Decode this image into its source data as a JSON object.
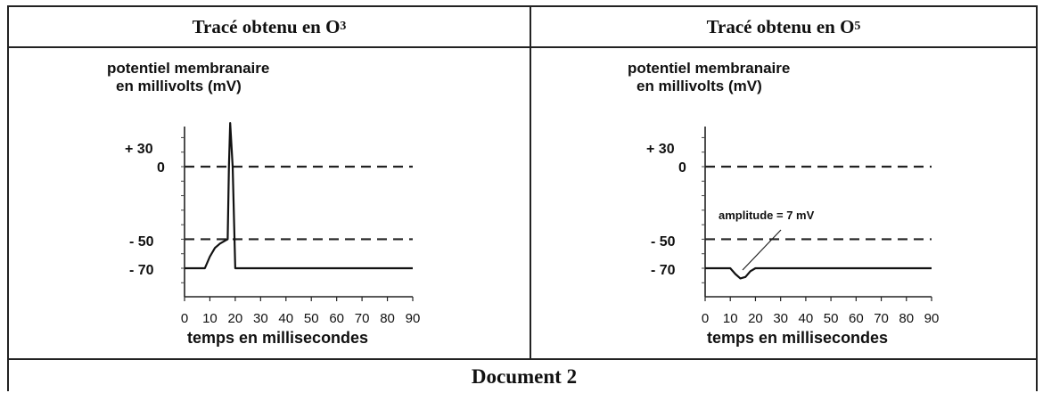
{
  "panels": [
    {
      "header_prefix": "Tracé obtenu en O",
      "header_sub": "3",
      "ylabel_line1": "potentiel membranaire",
      "ylabel_line2": "en millivolts (mV)",
      "xlabel": "temps en millisecondes",
      "y_ticks": [
        "+ 30",
        "0",
        "- 50",
        "- 70"
      ],
      "x_ticks": [
        "0",
        "10",
        "20",
        "30",
        "40",
        "50",
        "60",
        "70",
        "80",
        "90"
      ]
    },
    {
      "header_prefix": "Tracé obtenu en O",
      "header_sub": "5",
      "ylabel_line1": "potentiel membranaire",
      "ylabel_line2": "en millivolts (mV)",
      "xlabel": "temps en millisecondes",
      "y_ticks": [
        "+ 30",
        "0",
        "- 50",
        "- 70"
      ],
      "x_ticks": [
        "0",
        "10",
        "20",
        "30",
        "40",
        "50",
        "60",
        "70",
        "80",
        "90"
      ],
      "annotation": "amplitude = 7 mV"
    }
  ],
  "footer": {
    "title": "Document 2"
  },
  "chart_data": [
    {
      "type": "line",
      "xlabel": "temps en millisecondes",
      "ylabel": "potentiel membranaire en millivolts (mV)",
      "xlim": [
        0,
        90
      ],
      "ylim": [
        -80,
        40
      ],
      "reference_lines": [
        0,
        -50
      ],
      "series": [
        {
          "x": [
            0,
            8,
            10,
            12,
            14,
            16,
            17,
            17.5,
            18,
            19,
            20,
            90
          ],
          "y": [
            -70,
            -70,
            -62,
            -56,
            -53,
            -51,
            -50,
            0,
            30,
            0,
            -70,
            -70
          ]
        }
      ]
    },
    {
      "type": "line",
      "xlabel": "temps en millisecondes",
      "ylabel": "potentiel membranaire en millivolts (mV)",
      "xlim": [
        0,
        90
      ],
      "ylim": [
        -80,
        40
      ],
      "reference_lines": [
        0,
        -50
      ],
      "annotation": "amplitude = 7 mV",
      "series": [
        {
          "x": [
            0,
            10,
            12,
            14,
            16,
            18,
            20,
            90
          ],
          "y": [
            -70,
            -70,
            -74,
            -77,
            -76,
            -72,
            -70,
            -70
          ]
        }
      ]
    }
  ]
}
